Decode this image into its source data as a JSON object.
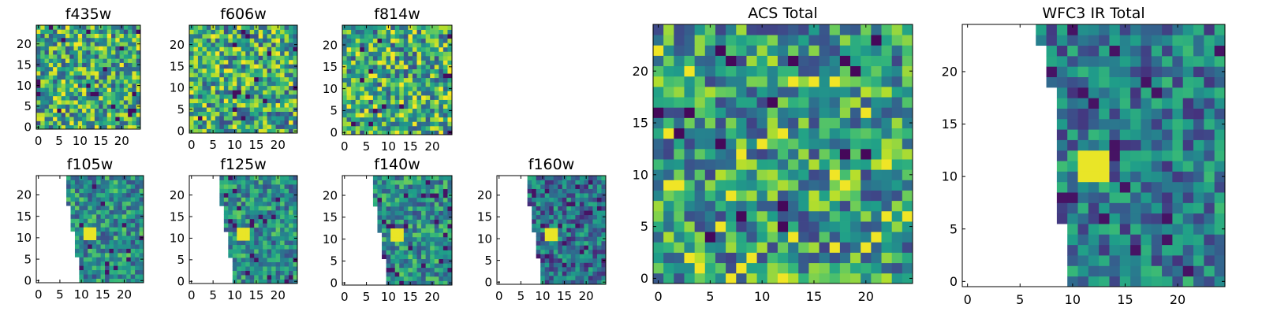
{
  "figure": {
    "panels": [
      {
        "id": "f435w",
        "title": "f435w"
      },
      {
        "id": "f606w",
        "title": "f606w"
      },
      {
        "id": "f814w",
        "title": "f814w"
      },
      {
        "id": "f105w",
        "title": "f105w"
      },
      {
        "id": "f125w",
        "title": "f125w"
      },
      {
        "id": "f140w",
        "title": "f140w"
      },
      {
        "id": "f160w",
        "title": "f160w"
      },
      {
        "id": "acs_total",
        "title": "ACS Total"
      },
      {
        "id": "wfc3_ir_total",
        "title": "WFC3 IR Total"
      }
    ]
  },
  "chart_data": [
    {
      "type": "heatmap",
      "title": "f435w",
      "xlim": [
        0,
        25
      ],
      "ylim": [
        0,
        25
      ],
      "xticks": [
        "0",
        "5",
        "10",
        "15",
        "20"
      ],
      "yticks": [
        "0",
        "5",
        "10",
        "15",
        "20"
      ],
      "grid_size": 25,
      "colormap": "viridis",
      "masked_region": "none"
    },
    {
      "type": "heatmap",
      "title": "f606w",
      "xlim": [
        0,
        25
      ],
      "ylim": [
        0,
        25
      ],
      "xticks": [
        "0",
        "5",
        "10",
        "15",
        "20"
      ],
      "yticks": [
        "0",
        "5",
        "10",
        "15",
        "20"
      ],
      "grid_size": 25,
      "colormap": "viridis",
      "masked_region": "none"
    },
    {
      "type": "heatmap",
      "title": "f814w",
      "xlim": [
        0,
        25
      ],
      "ylim": [
        0,
        25
      ],
      "xticks": [
        "0",
        "5",
        "10",
        "15",
        "20"
      ],
      "yticks": [
        "0",
        "5",
        "10",
        "15",
        "20"
      ],
      "grid_size": 25,
      "colormap": "viridis",
      "masked_region": "none"
    },
    {
      "type": "heatmap",
      "title": "f105w",
      "xlim": [
        0,
        25
      ],
      "ylim": [
        0,
        25
      ],
      "xticks": [
        "0",
        "5",
        "10",
        "15",
        "20"
      ],
      "yticks": [
        "0",
        "5",
        "10",
        "15",
        "20"
      ],
      "grid_size": 25,
      "colormap": "viridis",
      "masked_region": "left"
    },
    {
      "type": "heatmap",
      "title": "f125w",
      "xlim": [
        0,
        25
      ],
      "ylim": [
        0,
        25
      ],
      "xticks": [
        "0",
        "5",
        "10",
        "15",
        "20"
      ],
      "yticks": [
        "0",
        "5",
        "10",
        "15",
        "20"
      ],
      "grid_size": 25,
      "colormap": "viridis",
      "masked_region": "left"
    },
    {
      "type": "heatmap",
      "title": "f140w",
      "xlim": [
        0,
        25
      ],
      "ylim": [
        0,
        25
      ],
      "xticks": [
        "0",
        "5",
        "10",
        "15",
        "20"
      ],
      "yticks": [
        "0",
        "5",
        "10",
        "15",
        "20"
      ],
      "grid_size": 25,
      "colormap": "viridis",
      "masked_region": "left"
    },
    {
      "type": "heatmap",
      "title": "f160w",
      "xlim": [
        0,
        25
      ],
      "ylim": [
        0,
        25
      ],
      "xticks": [
        "0",
        "5",
        "10",
        "15",
        "20"
      ],
      "yticks": [
        "0",
        "5",
        "10",
        "15",
        "20"
      ],
      "grid_size": 25,
      "colormap": "viridis",
      "masked_region": "left"
    },
    {
      "type": "heatmap",
      "title": "ACS Total",
      "xlim": [
        0,
        25
      ],
      "ylim": [
        0,
        25
      ],
      "xticks": [
        "0",
        "5",
        "10",
        "15",
        "20"
      ],
      "yticks": [
        "0",
        "5",
        "10",
        "15",
        "20"
      ],
      "grid_size": 25,
      "colormap": "viridis",
      "masked_region": "none"
    },
    {
      "type": "heatmap",
      "title": "WFC3 IR Total",
      "xlim": [
        0,
        25
      ],
      "ylim": [
        0,
        25
      ],
      "xticks": [
        "0",
        "5",
        "10",
        "15",
        "20"
      ],
      "yticks": [
        "0",
        "5",
        "10",
        "15",
        "20"
      ],
      "grid_size": 25,
      "colormap": "viridis",
      "masked_region": "left"
    }
  ]
}
